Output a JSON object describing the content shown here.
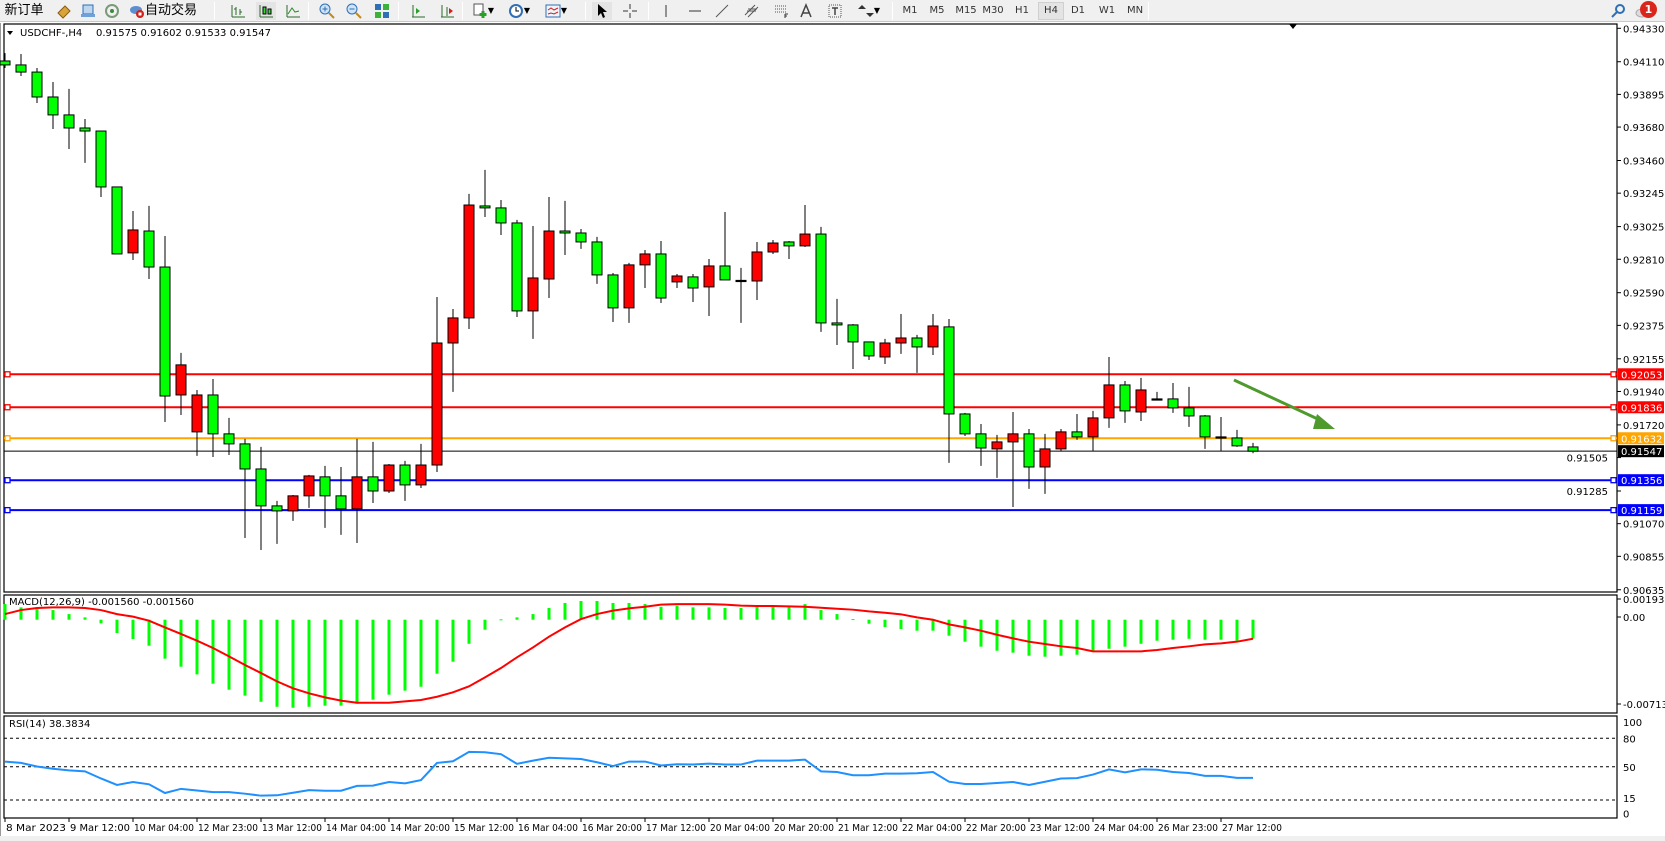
{
  "toolbar": {
    "new_order_label": "新订单",
    "auto_trading_label": "自动交易",
    "timeframes": [
      "M1",
      "M5",
      "M15",
      "M30",
      "H1",
      "H4",
      "D1",
      "W1",
      "MN"
    ],
    "active_timeframe": "H4",
    "notification_count": "1",
    "icons": [
      "new-order-icon",
      "market-watch-icon",
      "terminal-icon",
      "signals-icon",
      "auto-trading-icon",
      "bar-chart-icon",
      "candlestick-icon",
      "line-chart-icon",
      "zoom-in-icon",
      "zoom-out-icon",
      "tile-windows-icon",
      "chart-shift-icon",
      "autoscroll-icon",
      "indicators-icon",
      "periods-icon",
      "templates-icon",
      "cursor-icon",
      "crosshair-icon",
      "vertical-line-icon",
      "horizontal-line-icon",
      "trendline-icon",
      "equidistant-channel-icon",
      "fibonacci-icon",
      "text-icon",
      "text-label-icon",
      "arrows-icon",
      "search-icon",
      "chat-icon"
    ]
  },
  "chart_data": {
    "type": "candlestick",
    "symbol_header": "USDCHF-,H4",
    "ohlc_header": "0.91575 0.91602 0.91533 0.91547",
    "colors": {
      "bull": "#ff0000",
      "bear": "#00ff00",
      "doji": "#000000",
      "background": "#ffffff"
    },
    "candle_color_convention": "red = close above open, green = close below open",
    "price_ticks": [
      "0.94330",
      "0.94110",
      "0.93895",
      "0.93680",
      "0.93460",
      "0.93245",
      "0.93025",
      "0.92810",
      "0.92590",
      "0.92375",
      "0.92155",
      "0.91940",
      "0.91720",
      "0.91505",
      "0.91285",
      "0.91070",
      "0.90855",
      "0.90635"
    ],
    "ylim": [
      0.90635,
      0.9433
    ],
    "time_labels": [
      "8 Mar 2023",
      "9 Mar 12:00",
      "10 Mar 04:00",
      "12 Mar 23:00",
      "13 Mar 12:00",
      "14 Mar 04:00",
      "14 Mar 20:00",
      "15 Mar 12:00",
      "16 Mar 04:00",
      "16 Mar 20:00",
      "17 Mar 12:00",
      "20 Mar 04:00",
      "20 Mar 20:00",
      "21 Mar 12:00",
      "22 Mar 04:00",
      "22 Mar 20:00",
      "23 Mar 12:00",
      "24 Mar 04:00",
      "26 Mar 23:00",
      "27 Mar 12:00"
    ],
    "time_label_every_n_bars": 4,
    "ohlc": [
      [
        0.94115,
        0.94167,
        0.94069,
        0.94089
      ],
      [
        0.94089,
        0.94161,
        0.94016,
        0.94042
      ],
      [
        0.94042,
        0.94069,
        0.93838,
        0.93878
      ],
      [
        0.93878,
        0.93977,
        0.93667,
        0.9376
      ],
      [
        0.9376,
        0.93931,
        0.93536,
        0.93674
      ],
      [
        0.93674,
        0.93733,
        0.93444,
        0.93654
      ],
      [
        0.93654,
        0.93654,
        0.9322,
        0.93286
      ],
      [
        0.93286,
        0.93286,
        0.92845,
        0.92845
      ],
      [
        0.92852,
        0.93128,
        0.92805,
        0.93003
      ],
      [
        0.92996,
        0.93161,
        0.9268,
        0.92759
      ],
      [
        0.92759,
        0.92963,
        0.91739,
        0.9191
      ],
      [
        0.91917,
        0.92194,
        0.91785,
        0.92115
      ],
      [
        0.91674,
        0.9195,
        0.91516,
        0.91917
      ],
      [
        0.91917,
        0.92022,
        0.91509,
        0.91661
      ],
      [
        0.91661,
        0.91766,
        0.91522,
        0.91595
      ],
      [
        0.91595,
        0.91628,
        0.90976,
        0.9143
      ],
      [
        0.9143,
        0.91575,
        0.90897,
        0.91187
      ],
      [
        0.91187,
        0.9122,
        0.90937,
        0.91154
      ],
      [
        0.91154,
        0.91259,
        0.91088,
        0.91253
      ],
      [
        0.91253,
        0.91391,
        0.91174,
        0.91384
      ],
      [
        0.91378,
        0.9145,
        0.91042,
        0.91253
      ],
      [
        0.91253,
        0.91443,
        0.90996,
        0.91167
      ],
      [
        0.91167,
        0.91628,
        0.90943,
        0.91378
      ],
      [
        0.91378,
        0.91608,
        0.91206,
        0.91285
      ],
      [
        0.91285,
        0.91463,
        0.91272,
        0.91456
      ],
      [
        0.91456,
        0.91483,
        0.9122,
        0.91325
      ],
      [
        0.91325,
        0.91595,
        0.91305,
        0.91456
      ],
      [
        0.91456,
        0.92562,
        0.9141,
        0.92259
      ],
      [
        0.92259,
        0.92483,
        0.91937,
        0.92424
      ],
      [
        0.92424,
        0.9324,
        0.92351,
        0.93167
      ],
      [
        0.93161,
        0.93398,
        0.93088,
        0.93148
      ],
      [
        0.93148,
        0.932,
        0.9297,
        0.93049
      ],
      [
        0.93049,
        0.93069,
        0.9243,
        0.9247
      ],
      [
        0.9247,
        0.93029,
        0.92286,
        0.92687
      ],
      [
        0.9268,
        0.9322,
        0.92555,
        0.92996
      ],
      [
        0.92996,
        0.93194,
        0.92838,
        0.92983
      ],
      [
        0.92983,
        0.93009,
        0.92878,
        0.92924
      ],
      [
        0.92924,
        0.92957,
        0.92648,
        0.92707
      ],
      [
        0.92707,
        0.9272,
        0.92397,
        0.9249
      ],
      [
        0.9249,
        0.92786,
        0.92391,
        0.92773
      ],
      [
        0.92773,
        0.92871,
        0.92621,
        0.92845
      ],
      [
        0.92845,
        0.9293,
        0.92522,
        0.92555
      ],
      [
        0.92661,
        0.92713,
        0.92621,
        0.927
      ],
      [
        0.92694,
        0.92713,
        0.92529,
        0.92621
      ],
      [
        0.92628,
        0.92812,
        0.92437,
        0.92766
      ],
      [
        0.92766,
        0.93121,
        0.92674,
        0.92674
      ],
      [
        0.92671,
        0.92753,
        0.92391,
        0.92671
      ],
      [
        0.92667,
        0.92924,
        0.92542,
        0.92858
      ],
      [
        0.92858,
        0.92937,
        0.92845,
        0.92917
      ],
      [
        0.92924,
        0.9293,
        0.92812,
        0.92898
      ],
      [
        0.92898,
        0.93167,
        0.92891,
        0.92976
      ],
      [
        0.92976,
        0.93023,
        0.92332,
        0.92391
      ],
      [
        0.92391,
        0.92549,
        0.92246,
        0.92378
      ],
      [
        0.92378,
        0.92384,
        0.92088,
        0.92266
      ],
      [
        0.92266,
        0.92266,
        0.92147,
        0.92174
      ],
      [
        0.92167,
        0.92286,
        0.92121,
        0.92259
      ],
      [
        0.92259,
        0.9245,
        0.92187,
        0.92292
      ],
      [
        0.92292,
        0.92312,
        0.92062,
        0.92233
      ],
      [
        0.92233,
        0.9245,
        0.9218,
        0.92371
      ],
      [
        0.92365,
        0.92417,
        0.9147,
        0.91792
      ],
      [
        0.91792,
        0.91799,
        0.91647,
        0.91661
      ],
      [
        0.91661,
        0.91726,
        0.9145,
        0.91568
      ],
      [
        0.91562,
        0.91654,
        0.91371,
        0.91608
      ],
      [
        0.91608,
        0.91805,
        0.9118,
        0.91661
      ],
      [
        0.91661,
        0.91693,
        0.91299,
        0.91443
      ],
      [
        0.91443,
        0.91661,
        0.91266,
        0.91562
      ],
      [
        0.91562,
        0.91693,
        0.91549,
        0.91674
      ],
      [
        0.91674,
        0.91792,
        0.91621,
        0.91641
      ],
      [
        0.91641,
        0.91812,
        0.91549,
        0.91766
      ],
      [
        0.91766,
        0.92167,
        0.917,
        0.91983
      ],
      [
        0.91983,
        0.92009,
        0.91733,
        0.91812
      ],
      [
        0.91805,
        0.92029,
        0.91746,
        0.9195
      ],
      [
        0.91891,
        0.91937,
        0.91884,
        0.91891
      ],
      [
        0.91891,
        0.91996,
        0.91799,
        0.91832
      ],
      [
        0.91832,
        0.9197,
        0.91707,
        0.91779
      ],
      [
        0.91779,
        0.91785,
        0.91562,
        0.91641
      ],
      [
        0.91641,
        0.91772,
        0.91549,
        0.91641
      ],
      [
        0.91634,
        0.91687,
        0.91575,
        0.91582
      ],
      [
        0.91575,
        0.91602,
        0.91533,
        0.91547
      ]
    ],
    "horizontal_lines": [
      {
        "price": "0.92053",
        "color": "#ff0000"
      },
      {
        "price": "0.91836",
        "color": "#ff0000"
      },
      {
        "price": "0.91632",
        "color": "#ffa500"
      },
      {
        "price": "0.91356",
        "color": "#0000ff"
      },
      {
        "price": "0.91159",
        "color": "#0000ff"
      }
    ],
    "current_price": {
      "price": "0.91547",
      "color": "#000000"
    },
    "annotation_arrow": {
      "color": "#4e9a2c",
      "direction": "down-right"
    },
    "macd": {
      "label": "MACD(12,26,9) -0.001560 -0.001560",
      "ticks": [
        "0.001938",
        "0.00",
        "-0.007132"
      ],
      "ylim": [
        -0.007132,
        0.001938
      ],
      "histogram_color": "#00ff00",
      "signal_color": "#ff0000",
      "histogram": [
        0.00128,
        0.00101,
        0.00087,
        0.00079,
        0.00046,
        0.00019,
        -0.0003,
        -0.00109,
        -0.00158,
        -0.00213,
        -0.00319,
        -0.00385,
        -0.00448,
        -0.00524,
        -0.00573,
        -0.00622,
        -0.00672,
        -0.00713,
        -0.00721,
        -0.00713,
        -0.00704,
        -0.00704,
        -0.00688,
        -0.00655,
        -0.00614,
        -0.00581,
        -0.00549,
        -0.00442,
        -0.00344,
        -0.00197,
        -0.00082,
        3e-05,
        0.00019,
        0.00046,
        0.00096,
        0.00137,
        0.00153,
        0.00153,
        0.00137,
        0.00137,
        0.00128,
        0.00106,
        0.00115,
        0.00101,
        0.00101,
        0.00096,
        0.00096,
        0.00106,
        0.00106,
        0.00106,
        0.00128,
        0.00079,
        0.00046,
        5e-05,
        -0.00033,
        -0.0006,
        -0.00076,
        -0.0009,
        -0.0009,
        -0.00131,
        -0.0018,
        -0.00221,
        -0.00254,
        -0.0027,
        -0.00295,
        -0.00303,
        -0.00295,
        -0.00287,
        -0.00262,
        -0.00238,
        -0.00221,
        -0.00197,
        -0.00172,
        -0.00164,
        -0.00156,
        -0.00164,
        -0.00164,
        -0.00172,
        -0.00156
      ],
      "signal": [
        0.00046,
        0.00079,
        0.00096,
        0.00101,
        0.00101,
        0.00096,
        0.00079,
        0.00046,
        0.00025,
        -8e-05,
        -0.00063,
        -0.00117,
        -0.00172,
        -0.00232,
        -0.003,
        -0.00371,
        -0.00437,
        -0.00505,
        -0.00562,
        -0.00603,
        -0.00636,
        -0.00663,
        -0.0068,
        -0.0068,
        -0.0068,
        -0.00669,
        -0.00658,
        -0.00631,
        -0.00595,
        -0.00546,
        -0.00472,
        -0.00396,
        -0.00308,
        -0.00227,
        -0.00139,
        -0.00063,
        5e-05,
        0.00046,
        0.00074,
        0.00093,
        0.00106,
        0.00123,
        0.00128,
        0.00128,
        0.00128,
        0.00123,
        0.00115,
        0.00112,
        0.00112,
        0.00109,
        0.00106,
        0.00098,
        0.0009,
        0.00082,
        0.00068,
        0.00057,
        0.00044,
        0.00019,
        0.0,
        -0.00038,
        -0.00063,
        -0.0009,
        -0.00123,
        -0.00153,
        -0.0018,
        -0.00199,
        -0.00218,
        -0.00232,
        -0.00259,
        -0.00259,
        -0.00259,
        -0.00259,
        -0.00248,
        -0.00232,
        -0.00218,
        -0.00202,
        -0.00194,
        -0.0018,
        -0.00156
      ]
    },
    "rsi": {
      "label": "RSI(14) 38.3834",
      "ticks": [
        "100",
        "80",
        "50",
        "15",
        "0"
      ],
      "levels": [
        80,
        50,
        15
      ],
      "ylim": [
        0,
        100
      ],
      "color": "#1e90ff",
      "values": [
        55.5,
        54.1,
        50.3,
        48,
        46.2,
        45.2,
        37.7,
        30.9,
        34,
        31.6,
        22.4,
        26.8,
        25.1,
        23.4,
        23.4,
        21.7,
        19.6,
        20,
        22.7,
        25.4,
        24.8,
        24.8,
        29.9,
        30.2,
        34,
        32.6,
        36,
        54.1,
        55.8,
        65.7,
        65.3,
        63.3,
        53.1,
        56.5,
        59.5,
        58.9,
        58.2,
        54.8,
        50.7,
        55.5,
        55.5,
        51.4,
        52.7,
        52.4,
        53.4,
        52.4,
        52.4,
        56.5,
        56.5,
        56.5,
        57.5,
        45.2,
        44.5,
        41.1,
        41.1,
        42.8,
        42.8,
        43.2,
        44.5,
        34.3,
        31.9,
        31.9,
        33,
        34,
        30.9,
        34.3,
        37.7,
        38.1,
        41.8,
        47.3,
        44.2,
        47.3,
        46.9,
        44.5,
        43.5,
        40.5,
        40.5,
        38.4,
        38.38
      ]
    }
  }
}
